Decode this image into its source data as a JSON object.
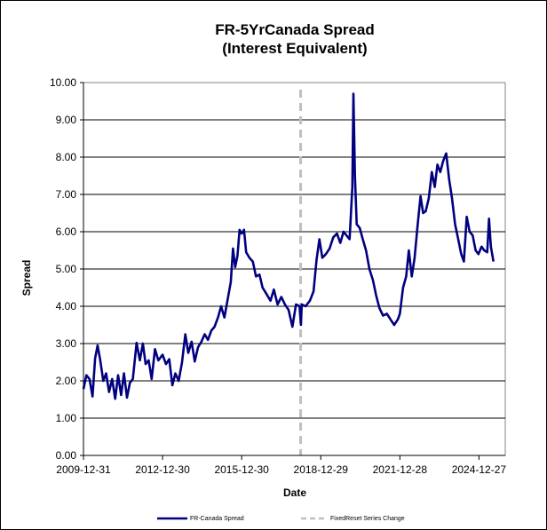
{
  "chart_data": {
    "type": "line",
    "title_lines": [
      "FR-5YrCanada Spread",
      "(Interest Equivalent)"
    ],
    "xlabel": "Date",
    "ylabel": "Spread",
    "ylim": [
      0,
      10
    ],
    "y_ticks": [
      0.0,
      1.0,
      2.0,
      3.0,
      4.0,
      5.0,
      6.0,
      7.0,
      8.0,
      9.0,
      10.0
    ],
    "y_tick_labels": [
      "0.00",
      "1.00",
      "2.00",
      "3.00",
      "4.00",
      "5.00",
      "6.00",
      "7.00",
      "8.00",
      "9.00",
      "10.00"
    ],
    "x_range": [
      "2009-12-31",
      "2025-12-26"
    ],
    "x_tick_labels": [
      "2009-12-31",
      "2012-12-30",
      "2015-12-30",
      "2018-12-29",
      "2021-12-28",
      "2024-12-27"
    ],
    "grid": "horizontal",
    "legend_position": "bottom",
    "series": [
      {
        "name": "FR-Canada Spread",
        "color": "#000080",
        "style": "solid",
        "points": [
          [
            "2009-12-31",
            1.78
          ],
          [
            "2010-02-10",
            2.15
          ],
          [
            "2010-03-25",
            2.05
          ],
          [
            "2010-05-05",
            1.58
          ],
          [
            "2010-06-10",
            2.6
          ],
          [
            "2010-07-15",
            2.95
          ],
          [
            "2010-08-20",
            2.55
          ],
          [
            "2010-10-01",
            2.0
          ],
          [
            "2010-11-10",
            2.2
          ],
          [
            "2010-12-20",
            1.7
          ],
          [
            "2011-02-01",
            2.05
          ],
          [
            "2011-03-15",
            1.52
          ],
          [
            "2011-04-25",
            2.15
          ],
          [
            "2011-06-05",
            1.62
          ],
          [
            "2011-07-15",
            2.2
          ],
          [
            "2011-08-25",
            1.55
          ],
          [
            "2011-10-05",
            1.95
          ],
          [
            "2011-11-15",
            2.05
          ],
          [
            "2012-01-05",
            3.02
          ],
          [
            "2012-02-20",
            2.55
          ],
          [
            "2012-04-01",
            3.0
          ],
          [
            "2012-05-10",
            2.45
          ],
          [
            "2012-06-20",
            2.55
          ],
          [
            "2012-08-01",
            2.05
          ],
          [
            "2012-09-15",
            2.85
          ],
          [
            "2012-11-01",
            2.55
          ],
          [
            "2012-12-30",
            2.7
          ],
          [
            "2013-02-15",
            2.45
          ],
          [
            "2013-04-01",
            2.58
          ],
          [
            "2013-05-15",
            1.88
          ],
          [
            "2013-06-25",
            2.2
          ],
          [
            "2013-08-10",
            2.0
          ],
          [
            "2013-09-25",
            2.5
          ],
          [
            "2013-11-10",
            3.25
          ],
          [
            "2013-12-20",
            2.75
          ],
          [
            "2014-02-05",
            3.05
          ],
          [
            "2014-03-20",
            2.52
          ],
          [
            "2014-05-05",
            2.9
          ],
          [
            "2014-06-20",
            3.05
          ],
          [
            "2014-08-05",
            3.25
          ],
          [
            "2014-09-20",
            3.1
          ],
          [
            "2014-11-05",
            3.35
          ],
          [
            "2014-12-20",
            3.45
          ],
          [
            "2015-02-05",
            3.7
          ],
          [
            "2015-03-20",
            4.0
          ],
          [
            "2015-05-05",
            3.7
          ],
          [
            "2015-06-20",
            4.2
          ],
          [
            "2015-08-01",
            4.65
          ],
          [
            "2015-09-01",
            5.55
          ],
          [
            "2015-10-01",
            5.05
          ],
          [
            "2015-11-01",
            5.35
          ],
          [
            "2015-12-01",
            6.05
          ],
          [
            "2015-12-30",
            5.95
          ],
          [
            "2016-02-01",
            6.05
          ],
          [
            "2016-03-01",
            5.45
          ],
          [
            "2016-04-15",
            5.3
          ],
          [
            "2016-06-01",
            5.2
          ],
          [
            "2016-07-15",
            4.8
          ],
          [
            "2016-09-01",
            4.85
          ],
          [
            "2016-10-15",
            4.5
          ],
          [
            "2016-12-01",
            4.35
          ],
          [
            "2017-02-01",
            4.15
          ],
          [
            "2017-03-20",
            4.45
          ],
          [
            "2017-05-10",
            4.05
          ],
          [
            "2017-07-01",
            4.25
          ],
          [
            "2017-08-20",
            4.05
          ],
          [
            "2017-10-10",
            3.9
          ],
          [
            "2017-12-01",
            3.45
          ],
          [
            "2018-01-20",
            4.05
          ],
          [
            "2018-03-10",
            4.0
          ],
          [
            "2018-03-30",
            3.5
          ],
          [
            "2018-04-10",
            4.05
          ],
          [
            "2018-06-01",
            4.0
          ],
          [
            "2018-08-01",
            4.15
          ],
          [
            "2018-09-20",
            4.4
          ],
          [
            "2018-11-01",
            5.25
          ],
          [
            "2018-12-10",
            5.8
          ],
          [
            "2019-01-20",
            5.3
          ],
          [
            "2019-03-10",
            5.4
          ],
          [
            "2019-05-01",
            5.55
          ],
          [
            "2019-06-20",
            5.85
          ],
          [
            "2019-08-10",
            5.95
          ],
          [
            "2019-09-25",
            5.7
          ],
          [
            "2019-11-10",
            6.0
          ],
          [
            "2019-12-20",
            5.9
          ],
          [
            "2020-02-01",
            5.8
          ],
          [
            "2020-03-10",
            7.2
          ],
          [
            "2020-03-25",
            9.7
          ],
          [
            "2020-04-15",
            7.5
          ],
          [
            "2020-05-10",
            6.2
          ],
          [
            "2020-06-20",
            6.1
          ],
          [
            "2020-08-01",
            5.8
          ],
          [
            "2020-09-15",
            5.5
          ],
          [
            "2020-11-01",
            5.0
          ],
          [
            "2020-12-20",
            4.7
          ],
          [
            "2021-02-01",
            4.3
          ],
          [
            "2021-03-20",
            3.95
          ],
          [
            "2021-05-10",
            3.75
          ],
          [
            "2021-07-01",
            3.8
          ],
          [
            "2021-08-20",
            3.65
          ],
          [
            "2021-10-10",
            3.5
          ],
          [
            "2021-12-01",
            3.65
          ],
          [
            "2021-12-28",
            3.8
          ],
          [
            "2022-02-10",
            4.5
          ],
          [
            "2022-03-25",
            4.8
          ],
          [
            "2022-05-01",
            5.5
          ],
          [
            "2022-06-10",
            4.8
          ],
          [
            "2022-07-20",
            5.3
          ],
          [
            "2022-09-01",
            6.2
          ],
          [
            "2022-10-10",
            6.95
          ],
          [
            "2022-11-15",
            6.5
          ],
          [
            "2022-12-20",
            6.55
          ],
          [
            "2023-02-01",
            6.9
          ],
          [
            "2023-03-15",
            7.6
          ],
          [
            "2023-04-25",
            7.2
          ],
          [
            "2023-06-01",
            7.8
          ],
          [
            "2023-07-10",
            7.6
          ],
          [
            "2023-08-20",
            7.9
          ],
          [
            "2023-10-01",
            8.1
          ],
          [
            "2023-11-10",
            7.4
          ],
          [
            "2023-12-20",
            6.9
          ],
          [
            "2024-02-01",
            6.2
          ],
          [
            "2024-03-15",
            5.8
          ],
          [
            "2024-04-25",
            5.4
          ],
          [
            "2024-06-01",
            5.2
          ],
          [
            "2024-07-10",
            6.4
          ],
          [
            "2024-08-20",
            6.0
          ],
          [
            "2024-10-01",
            5.9
          ],
          [
            "2024-11-10",
            5.5
          ],
          [
            "2024-12-20",
            5.4
          ],
          [
            "2025-02-01",
            5.6
          ],
          [
            "2025-03-10",
            5.5
          ],
          [
            "2025-04-20",
            5.45
          ],
          [
            "2025-05-15",
            6.35
          ],
          [
            "2025-06-10",
            5.6
          ],
          [
            "2025-07-15",
            5.2
          ]
        ]
      },
      {
        "name": "FixedReset Series Change",
        "color": "#bfbfbf",
        "style": "dashed",
        "x": "2018-03-25"
      }
    ]
  }
}
